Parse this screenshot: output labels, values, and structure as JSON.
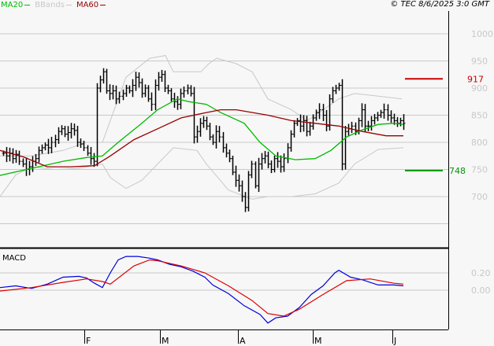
{
  "legend": [
    {
      "label": "MA20",
      "color": "#00bb00"
    },
    {
      "label": "BBands",
      "color": "#c8c8c8"
    },
    {
      "label": "MA60",
      "color": "#990000"
    }
  ],
  "copyright": "© TEC 8/6/2025 3:0 GMT",
  "chart_data": [
    {
      "type": "ohlc",
      "title": "",
      "yticks": [
        "1000",
        "950",
        "900",
        "850",
        "800",
        "750",
        "700"
      ],
      "ylim": [
        630,
        1050
      ],
      "xticks": [
        "F",
        "M",
        "A",
        "M",
        "J"
      ],
      "levels": [
        {
          "label": "917",
          "value": 917,
          "color": "#cc0000"
        },
        {
          "label": "748",
          "value": 748,
          "color": "#009900"
        }
      ],
      "close": [
        780,
        775,
        780,
        770,
        778,
        765,
        760,
        750,
        755,
        765,
        770,
        785,
        790,
        795,
        790,
        800,
        805,
        820,
        825,
        815,
        818,
        825,
        822,
        800,
        797,
        790,
        780,
        770,
        765,
        900,
        915,
        930,
        895,
        890,
        895,
        880,
        885,
        890,
        900,
        895,
        905,
        920,
        910,
        890,
        900,
        880,
        870,
        905,
        920,
        925,
        900,
        895,
        880,
        875,
        870,
        890,
        895,
        900,
        890,
        810,
        820,
        835,
        840,
        830,
        810,
        800,
        820,
        810,
        790,
        780,
        770,
        745,
        730,
        720,
        700,
        680,
        740,
        760,
        720,
        760,
        770,
        775,
        760,
        750,
        770,
        765,
        755,
        770,
        790,
        815,
        835,
        840,
        830,
        840,
        820,
        830,
        845,
        855,
        860,
        850,
        830,
        880,
        895,
        900,
        905,
        760,
        820,
        825,
        830,
        820,
        840,
        860,
        830,
        830,
        840,
        845,
        850,
        855,
        860,
        850,
        845,
        840,
        835,
        840,
        835
      ],
      "series": [
        {
          "name": "MA20",
          "color": "#00bb00",
          "x": [
            0,
            40,
            80,
            110,
            130,
            150,
            180,
            200,
            225,
            240,
            262,
            280,
            310,
            330,
            350,
            375,
            400,
            420,
            440,
            460,
            480,
            500,
            512
          ],
          "values": [
            739,
            752,
            765,
            772,
            775,
            800,
            835,
            860,
            880,
            875,
            870,
            855,
            835,
            800,
            775,
            768,
            770,
            785,
            810,
            823,
            833,
            835,
            833
          ]
        },
        {
          "name": "MA60",
          "color": "#990000",
          "x": [
            0,
            30,
            60,
            90,
            120,
            140,
            170,
            200,
            230,
            262,
            280,
            300,
            340,
            370,
            400,
            430,
            460,
            490,
            512
          ],
          "values": [
            785,
            773,
            755,
            755,
            757,
            775,
            805,
            825,
            845,
            855,
            860,
            860,
            850,
            840,
            835,
            830,
            820,
            812,
            812
          ]
        },
        {
          "name": "BBands upper",
          "color": "#c8c8c8",
          "x": [
            0,
            40,
            80,
            110,
            130,
            160,
            190,
            210,
            220,
            235,
            255,
            265,
            275,
            300,
            320,
            340,
            370,
            390,
            410,
            430,
            450,
            480,
            510
          ],
          "values": [
            775,
            775,
            785,
            800,
            800,
            920,
            955,
            960,
            930,
            930,
            930,
            945,
            955,
            945,
            930,
            880,
            860,
            840,
            860,
            880,
            890,
            885,
            880
          ]
        },
        {
          "name": "BBands lower",
          "color": "#c8c8c8",
          "x": [
            0,
            20,
            40,
            70,
            100,
            130,
            140,
            160,
            180,
            220,
            250,
            262,
            290,
            320,
            340,
            370,
            400,
            430,
            450,
            480,
            512
          ],
          "values": [
            700,
            740,
            755,
            750,
            752,
            760,
            735,
            715,
            730,
            790,
            785,
            760,
            712,
            695,
            700,
            700,
            705,
            725,
            760,
            787,
            790
          ]
        }
      ]
    },
    {
      "type": "line",
      "title": "MACD",
      "yticks": [
        "0.20",
        "0.00"
      ],
      "ylim": [
        -0.45,
        0.5
      ],
      "series": [
        {
          "name": "MACD",
          "color": "#0000dd",
          "x": [
            0,
            20,
            40,
            60,
            80,
            100,
            110,
            120,
            130,
            140,
            150,
            160,
            175,
            190,
            200,
            215,
            230,
            245,
            260,
            270,
            290,
            310,
            330,
            340,
            350,
            365,
            380,
            395,
            410,
            425,
            430,
            445,
            460,
            480,
            500,
            512
          ],
          "values": [
            0.03,
            0.05,
            0.02,
            0.07,
            0.15,
            0.16,
            0.14,
            0.08,
            0.03,
            0.2,
            0.35,
            0.39,
            0.39,
            0.37,
            0.35,
            0.3,
            0.27,
            0.22,
            0.15,
            0.06,
            -0.04,
            -0.18,
            -0.28,
            -0.38,
            -0.32,
            -0.3,
            -0.2,
            -0.05,
            0.05,
            0.2,
            0.23,
            0.15,
            0.12,
            0.06,
            0.06,
            0.05
          ]
        },
        {
          "name": "Signal",
          "color": "#dd0000",
          "x": [
            0,
            40,
            80,
            110,
            130,
            140,
            170,
            190,
            200,
            230,
            260,
            290,
            320,
            340,
            360,
            380,
            410,
            440,
            470,
            500,
            512
          ],
          "values": [
            -0.01,
            0.03,
            0.09,
            0.13,
            0.1,
            0.07,
            0.28,
            0.35,
            0.34,
            0.28,
            0.2,
            0.05,
            -0.12,
            -0.27,
            -0.3,
            -0.22,
            -0.05,
            0.11,
            0.13,
            0.08,
            0.07
          ]
        }
      ]
    }
  ]
}
